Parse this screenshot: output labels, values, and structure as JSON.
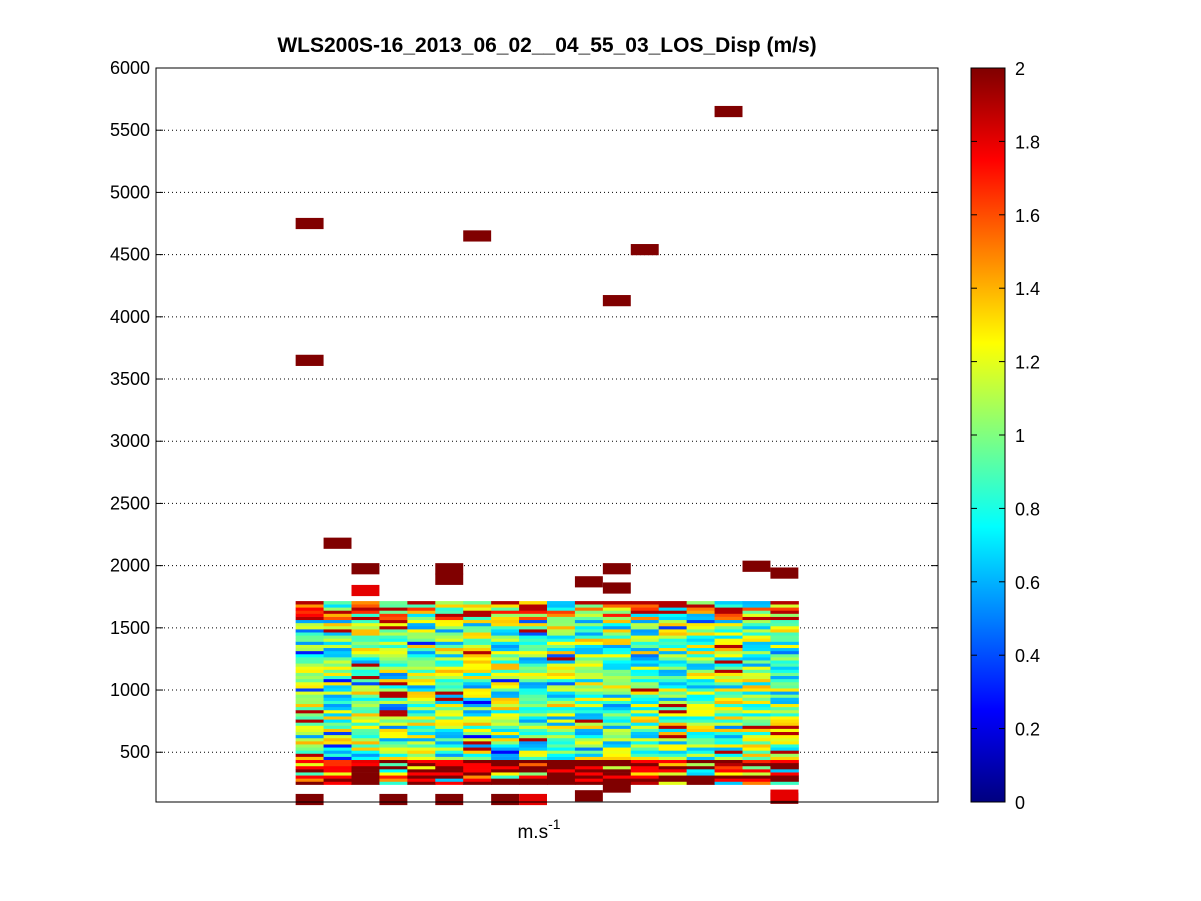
{
  "chart_data": {
    "type": "heatmap",
    "title": "WLS200S-16_2013_06_02__04_55_03_LOS_Disp (m/s)",
    "xlabel_base": "m.s",
    "xlabel_exp": "-1",
    "ylabel": "",
    "ylim": [
      100,
      6000
    ],
    "yticks": [
      500,
      1000,
      1500,
      2000,
      2500,
      3000,
      3500,
      4000,
      4500,
      5000,
      5500,
      6000
    ],
    "ytick_labels": [
      "500",
      "1000",
      "1500",
      "2000",
      "2500",
      "3000",
      "3500",
      "4000",
      "4500",
      "5000",
      "5500",
      "6000"
    ],
    "grid": true,
    "colorbar": {
      "colormap": "jet",
      "range": [
        0,
        2
      ],
      "ticks": [
        0,
        0.2,
        0.4,
        0.6,
        0.8,
        1,
        1.2,
        1.4,
        1.6,
        1.8,
        2
      ],
      "tick_labels": [
        "0",
        "0.2",
        "0.4",
        "0.6",
        "0.8",
        "1",
        "1.2",
        "1.4",
        "1.6",
        "1.8",
        "2"
      ]
    },
    "columns": 18,
    "column_range": [
      5,
      23
    ],
    "xlim": [
      0,
      28
    ],
    "low_band": {
      "y_start": 240,
      "y_end": 1700,
      "row_height": 25
    },
    "isolated_cells": [
      {
        "col": 5,
        "y": 4750,
        "v": 2.0
      },
      {
        "col": 5,
        "y": 3650,
        "v": 2.0
      },
      {
        "col": 6,
        "y": 2180,
        "v": 2.0
      },
      {
        "col": 7,
        "y": 1975,
        "v": 2.0
      },
      {
        "col": 7,
        "y": 1800,
        "v": 1.8
      },
      {
        "col": 10,
        "y": 1975,
        "v": 2.0
      },
      {
        "col": 10,
        "y": 1890,
        "v": 2.0
      },
      {
        "col": 11,
        "y": 4650,
        "v": 2.0
      },
      {
        "col": 15,
        "y": 1870,
        "v": 2.0
      },
      {
        "col": 16,
        "y": 1975,
        "v": 2.0
      },
      {
        "col": 16,
        "y": 1820,
        "v": 2.0
      },
      {
        "col": 16,
        "y": 4130,
        "v": 2.0
      },
      {
        "col": 17,
        "y": 4540,
        "v": 2.0
      },
      {
        "col": 20,
        "y": 5650,
        "v": 2.0
      },
      {
        "col": 21,
        "y": 1995,
        "v": 2.0
      },
      {
        "col": 22,
        "y": 1940,
        "v": 2.0
      },
      {
        "col": 5,
        "y": 120,
        "v": 2.0
      },
      {
        "col": 8,
        "y": 120,
        "v": 2.0
      },
      {
        "col": 10,
        "y": 120,
        "v": 2.0
      },
      {
        "col": 12,
        "y": 120,
        "v": 2.0
      },
      {
        "col": 13,
        "y": 120,
        "v": 1.8
      },
      {
        "col": 15,
        "y": 150,
        "v": 2.0
      },
      {
        "col": 16,
        "y": 220,
        "v": 2.0
      },
      {
        "col": 22,
        "y": 130,
        "v": 2.0
      },
      {
        "col": 22,
        "y": 155,
        "v": 1.8
      }
    ]
  }
}
